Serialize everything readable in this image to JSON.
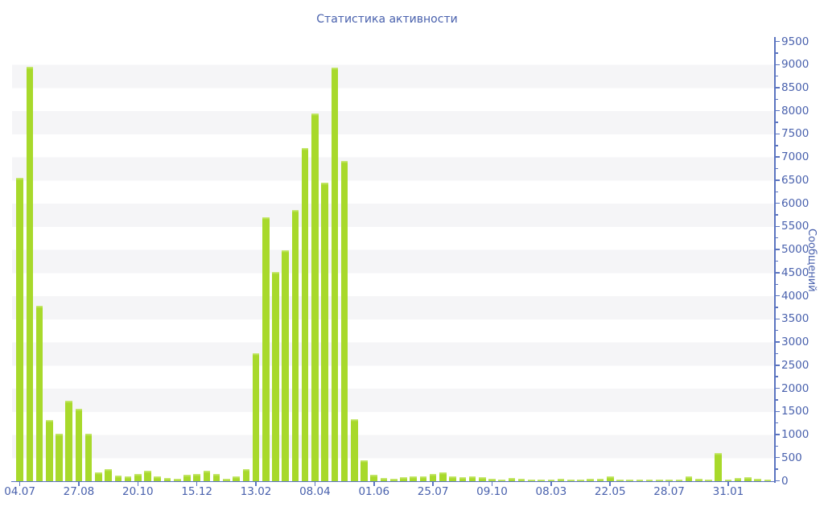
{
  "page": {
    "title": "Статистика активности"
  },
  "chart_data": {
    "type": "bar",
    "title": "Статистика активности",
    "ylabel": "Сообщений",
    "xlabel": "",
    "ylim": [
      0,
      9500
    ],
    "y_tick_step": 500,
    "y_minor_tick_step": 250,
    "grid": "horizontal striped bands every 500 units",
    "legend_position": "none",
    "x_tick_labels": [
      "04.07",
      "27.08",
      "20.10",
      "15.12",
      "13.02",
      "08.04",
      "01.06",
      "25.07",
      "09.10",
      "08.03",
      "22.05",
      "28.07",
      "31.01"
    ],
    "x_label_every_n_bars": 6,
    "values": [
      6550,
      8950,
      3780,
      1310,
      1010,
      1730,
      1560,
      1010,
      190,
      250,
      105,
      90,
      150,
      215,
      100,
      60,
      50,
      130,
      155,
      220,
      150,
      45,
      95,
      250,
      2760,
      5690,
      4520,
      4990,
      5850,
      7200,
      7940,
      6450,
      8940,
      6920,
      1330,
      445,
      135,
      65,
      40,
      75,
      90,
      100,
      155,
      190,
      90,
      75,
      100,
      70,
      45,
      30,
      60,
      40,
      35,
      35,
      30,
      40,
      30,
      35,
      40,
      50,
      90,
      30,
      25,
      25,
      20,
      30,
      25,
      20,
      90,
      45,
      20,
      600,
      30,
      55,
      70,
      50,
      30
    ],
    "colors": {
      "bar": "#a8d92b",
      "bar_top_highlight": "#cdeb7f",
      "stripe_band": "#f5f5f7",
      "axis_line": "#5b74c0",
      "text": "#4961ad",
      "background": "#ffffff"
    }
  }
}
